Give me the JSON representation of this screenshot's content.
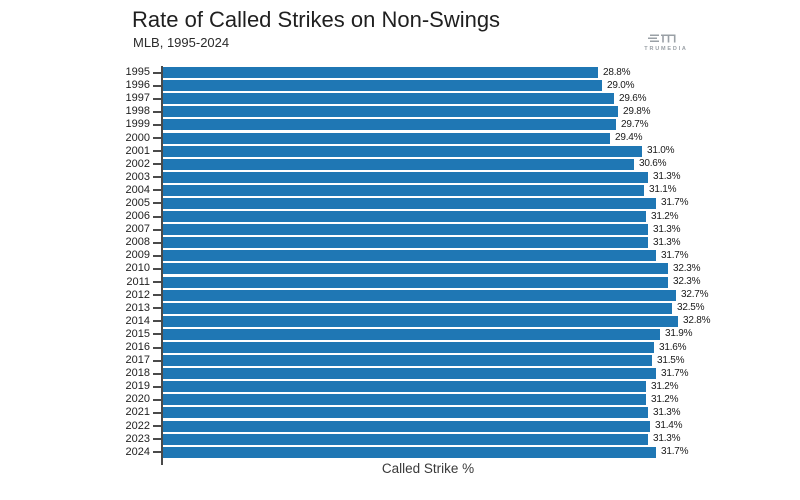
{
  "branding": {
    "logo_text": "TRUMEDIA"
  },
  "chart_data": {
    "type": "bar",
    "orientation": "horizontal",
    "title": "Rate of Called Strikes on Non-Swings",
    "subtitle": "MLB, 1995-2024",
    "xlabel": "Called Strike %",
    "ylabel": "",
    "categories": [
      "1995",
      "1996",
      "1997",
      "1998",
      "1999",
      "2000",
      "2001",
      "2002",
      "2003",
      "2004",
      "2005",
      "2006",
      "2007",
      "2008",
      "2009",
      "2010",
      "2011",
      "2012",
      "2013",
      "2014",
      "2015",
      "2016",
      "2017",
      "2018",
      "2019",
      "2020",
      "2021",
      "2022",
      "2023",
      "2024"
    ],
    "values": [
      28.8,
      29.0,
      29.6,
      29.8,
      29.7,
      29.4,
      31.0,
      30.6,
      31.3,
      31.1,
      31.7,
      31.2,
      31.3,
      31.3,
      31.7,
      32.3,
      32.3,
      32.7,
      32.5,
      32.8,
      31.9,
      31.6,
      31.5,
      31.7,
      31.2,
      31.2,
      31.3,
      31.4,
      31.3,
      31.7
    ],
    "value_label_suffix": "%",
    "bar_color": "#1f77b4",
    "axis_color": "#4a4a4a",
    "grid": false,
    "legend": false
  }
}
